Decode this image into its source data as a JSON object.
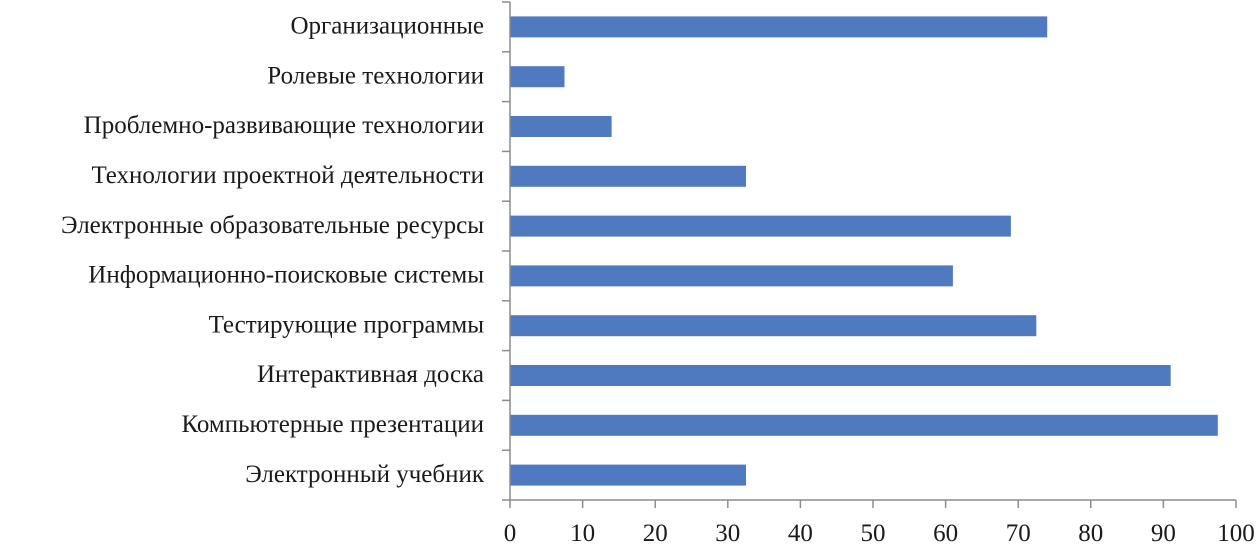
{
  "chart_data": {
    "type": "bar",
    "orientation": "horizontal",
    "categories": [
      "Организационные",
      "Ролевые технологии",
      "Проблемно-развивающие технологии",
      "Технологии проектной деятельности",
      "Электронные образовательные ресурсы",
      "Информационно-поисковые системы",
      "Тестирующие программы",
      "Интерактивная доска",
      "Компьютерные презентации",
      "Электронный учебник"
    ],
    "values": [
      74,
      7.5,
      14,
      32.5,
      69,
      61,
      72.5,
      91,
      97.5,
      32.5
    ],
    "title": "",
    "xlabel": "",
    "ylabel": "",
    "xlim": [
      0,
      100
    ],
    "xticks": [
      0,
      10,
      20,
      30,
      40,
      50,
      60,
      70,
      80,
      90,
      100
    ],
    "bar_color": "#4f7abf",
    "grid": false,
    "legend": "none"
  }
}
